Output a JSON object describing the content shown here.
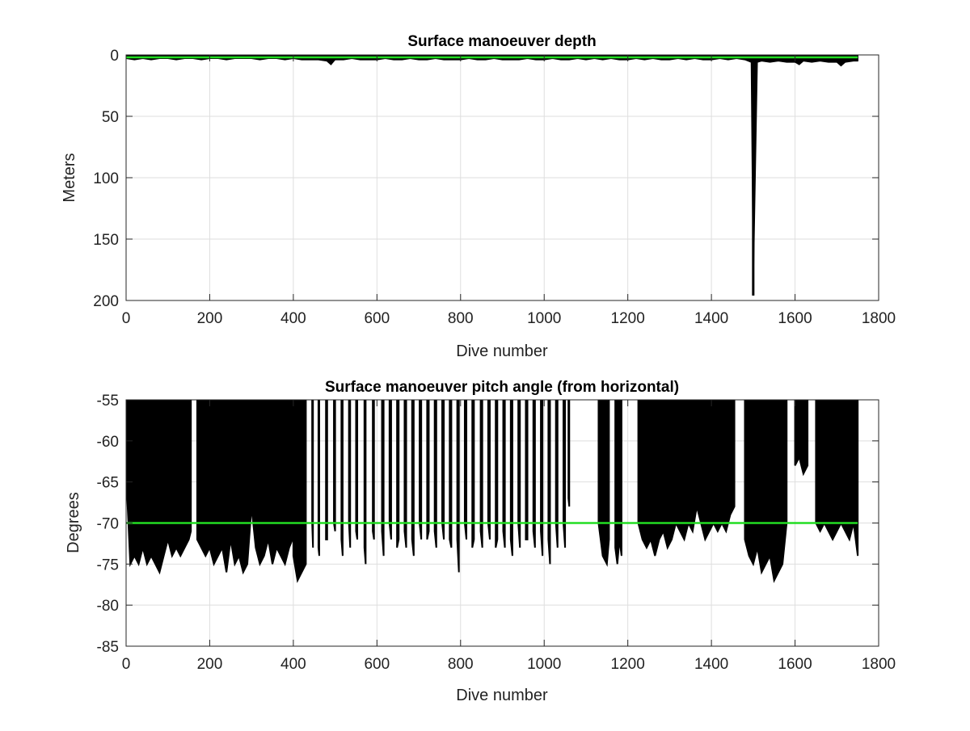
{
  "chart_data": [
    {
      "type": "line",
      "title": "Surface manoeuver depth",
      "xlabel": "Dive number",
      "ylabel": "Meters",
      "xlim": [
        0,
        1800
      ],
      "ylim": [
        0,
        200
      ],
      "y_reversed": true,
      "x_ticks": [
        "0",
        "200",
        "400",
        "600",
        "800",
        "1000",
        "1200",
        "1400",
        "1600",
        "1800"
      ],
      "y_ticks": [
        "0",
        "50",
        "100",
        "150",
        "200"
      ],
      "grid": true,
      "series": [
        {
          "color": "#000000",
          "style": "stem",
          "x": [
            1,
            20,
            40,
            60,
            80,
            100,
            120,
            140,
            160,
            180,
            200,
            220,
            240,
            260,
            280,
            300,
            320,
            340,
            360,
            380,
            400,
            420,
            440,
            460,
            480,
            490,
            500,
            520,
            540,
            560,
            580,
            600,
            620,
            640,
            660,
            680,
            700,
            720,
            740,
            760,
            780,
            800,
            820,
            840,
            860,
            880,
            900,
            920,
            940,
            960,
            980,
            1000,
            1020,
            1040,
            1060,
            1080,
            1100,
            1120,
            1140,
            1160,
            1180,
            1200,
            1220,
            1240,
            1260,
            1280,
            1300,
            1320,
            1340,
            1360,
            1380,
            1400,
            1420,
            1440,
            1460,
            1480,
            1495,
            1500,
            1510,
            1520,
            1540,
            1560,
            1580,
            1600,
            1610,
            1620,
            1640,
            1660,
            1680,
            1700,
            1710,
            1720,
            1740,
            1750
          ],
          "y": [
            3,
            4,
            3,
            4,
            3,
            3,
            4,
            3,
            3,
            4,
            3,
            3,
            4,
            3,
            3,
            3,
            4,
            3,
            3,
            4,
            3,
            4,
            4,
            4,
            5,
            8,
            4,
            4,
            3,
            4,
            4,
            4,
            3,
            4,
            4,
            3,
            4,
            4,
            3,
            4,
            4,
            4,
            3,
            4,
            4,
            3,
            4,
            4,
            4,
            3,
            4,
            4,
            3,
            4,
            4,
            3,
            4,
            3,
            4,
            3,
            4,
            4,
            3,
            4,
            3,
            4,
            4,
            3,
            4,
            3,
            4,
            4,
            3,
            4,
            3,
            4,
            6,
            196,
            6,
            5,
            6,
            5,
            6,
            6,
            8,
            5,
            6,
            5,
            6,
            6,
            9,
            6,
            5,
            5
          ]
        },
        {
          "color": "#22dd22",
          "style": "line",
          "x": [
            0,
            1750
          ],
          "y": [
            2,
            2
          ]
        }
      ]
    },
    {
      "type": "line",
      "title": "Surface manoeuver pitch angle (from horizontal)",
      "xlabel": "Dive number",
      "ylabel": "Degrees",
      "xlim": [
        0,
        1800
      ],
      "ylim": [
        -85,
        -55
      ],
      "x_ticks": [
        "0",
        "200",
        "400",
        "600",
        "800",
        "1000",
        "1200",
        "1400",
        "1600",
        "1800"
      ],
      "y_ticks": [
        "-55",
        "-60",
        "-65",
        "-70",
        "-75",
        "-80",
        "-85"
      ],
      "grid": true,
      "series": [
        {
          "color": "#000000",
          "style": "fill-from-top",
          "segments": [
            {
              "x": [
                1,
                10,
                20,
                30,
                40,
                50,
                60,
                70,
                80,
                90,
                100,
                110,
                120,
                130,
                140,
                150,
                155
              ],
              "y": [
                -65,
                -75,
                -74,
                -75,
                -73,
                -75,
                -74,
                -75,
                -76,
                -74,
                -72,
                -74,
                -73,
                -74,
                -73,
                -72,
                -71
              ]
            },
            {
              "x": [
                170,
                180,
                190,
                200,
                210,
                220,
                230,
                240,
                250,
                260,
                270,
                280,
                290,
                300,
                310,
                320,
                330,
                340,
                350,
                360,
                370,
                380,
                390,
                398
              ],
              "y": [
                -72,
                -73,
                -74,
                -73,
                -75,
                -74,
                -73,
                -76,
                -72,
                -75,
                -74,
                -76,
                -75,
                -68,
                -73,
                -75,
                -74,
                -72,
                -75,
                -73,
                -74,
                -75,
                -73,
                -72
              ]
            },
            {
              "x": [
                400,
                410,
                420,
                430
              ],
              "y": [
                -74,
                -77,
                -76,
                -75
              ]
            },
            {
              "x": [
                445,
                447
              ],
              "y": [
                -70,
                -73
              ]
            },
            {
              "x": [
                460,
                462
              ],
              "y": [
                -73,
                -74
              ]
            },
            {
              "x": [
                478,
                481
              ],
              "y": [
                -72,
                -72
              ]
            },
            {
              "x": [
                497,
                500
              ],
              "y": [
                -70,
                -71
              ]
            },
            {
              "x": [
                515,
                518
              ],
              "y": [
                -72,
                -74
              ]
            },
            {
              "x": [
                533,
                536
              ],
              "y": [
                -70,
                -73
              ]
            },
            {
              "x": [
                550,
                553
              ],
              "y": [
                -71,
                -72
              ]
            },
            {
              "x": [
                570,
                573
              ],
              "y": [
                -73,
                -75
              ]
            },
            {
              "x": [
                590,
                593
              ],
              "y": [
                -71,
                -72
              ]
            },
            {
              "x": [
                612,
                616
              ],
              "y": [
                -71,
                -74
              ]
            },
            {
              "x": [
                630,
                634
              ],
              "y": [
                -70,
                -72
              ]
            },
            {
              "x": [
                648,
                652
              ],
              "y": [
                -73,
                -72
              ]
            },
            {
              "x": [
                666,
                670
              ],
              "y": [
                -71,
                -73
              ]
            },
            {
              "x": [
                684,
                688
              ],
              "y": [
                -72,
                -74
              ]
            },
            {
              "x": [
                702,
                706
              ],
              "y": [
                -70,
                -72
              ]
            },
            {
              "x": [
                720,
                724
              ],
              "y": [
                -72,
                -71
              ]
            },
            {
              "x": [
                738,
                742
              ],
              "y": [
                -71,
                -73
              ]
            },
            {
              "x": [
                756,
                760
              ],
              "y": [
                -70,
                -72
              ]
            },
            {
              "x": [
                774,
                778
              ],
              "y": [
                -72,
                -73
              ]
            },
            {
              "x": [
                792,
                796
              ],
              "y": [
                -72,
                -76
              ]
            },
            {
              "x": [
                810,
                814
              ],
              "y": [
                -70,
                -72
              ]
            },
            {
              "x": [
                828,
                832
              ],
              "y": [
                -73,
                -72
              ]
            },
            {
              "x": [
                848,
                852
              ],
              "y": [
                -71,
                -73
              ]
            },
            {
              "x": [
                866,
                870
              ],
              "y": [
                -70,
                -72
              ]
            },
            {
              "x": [
                884,
                888
              ],
              "y": [
                -73,
                -72
              ]
            },
            {
              "x": [
                902,
                906
              ],
              "y": [
                -71,
                -73
              ]
            },
            {
              "x": [
                920,
                924
              ],
              "y": [
                -72,
                -74
              ]
            },
            {
              "x": [
                938,
                942
              ],
              "y": [
                -70,
                -73
              ]
            },
            {
              "x": [
                956,
                960
              ],
              "y": [
                -72,
                -72
              ]
            },
            {
              "x": [
                974,
                978
              ],
              "y": [
                -71,
                -73
              ]
            },
            {
              "x": [
                992,
                996
              ],
              "y": [
                -71,
                -74
              ]
            },
            {
              "x": [
                1010,
                1014
              ],
              "y": [
                -72,
                -75
              ]
            },
            {
              "x": [
                1028,
                1032
              ],
              "y": [
                -70,
                -73
              ]
            },
            {
              "x": [
                1046,
                1050
              ],
              "y": [
                -70,
                -73
              ]
            },
            {
              "x": [
                1058,
                1060
              ],
              "y": [
                -67,
                -68
              ]
            },
            {
              "x": [
                1130,
                1140,
                1150,
                1155
              ],
              "y": [
                -70,
                -74,
                -75,
                -72
              ]
            },
            {
              "x": [
                1170,
                1175,
                1180,
                1185
              ],
              "y": [
                -73,
                -75,
                -72,
                -74
              ]
            },
            {
              "x": [
                1225,
                1235,
                1245,
                1255,
                1265,
                1275,
                1285,
                1295,
                1305,
                1315,
                1325,
                1335,
                1345,
                1355,
                1365,
                1375,
                1385,
                1395,
                1405,
                1415,
                1425,
                1435,
                1445,
                1455
              ],
              "y": [
                -70,
                -72,
                -73,
                -72,
                -74,
                -72,
                -71,
                -73,
                -72,
                -70,
                -71,
                -72,
                -70,
                -71,
                -68,
                -70,
                -72,
                -71,
                -70,
                -71,
                -70,
                -71,
                -69,
                -68
              ]
            },
            {
              "x": [
                1480,
                1490,
                1500,
                1510,
                1520,
                1530,
                1540,
                1550,
                1560,
                1570,
                1580
              ],
              "y": [
                -72,
                -74,
                -75,
                -73,
                -76,
                -75,
                -74,
                -77,
                -76,
                -75,
                -70
              ]
            },
            {
              "x": [
                1600,
                1610,
                1620,
                1630
              ],
              "y": [
                -63,
                -62,
                -64,
                -63
              ]
            },
            {
              "x": [
                1650,
                1660,
                1670,
                1680,
                1690,
                1700,
                1710,
                1720,
                1730,
                1740,
                1750
              ],
              "y": [
                -70,
                -71,
                -70,
                -71,
                -72,
                -71,
                -70,
                -71,
                -72,
                -70,
                -74
              ]
            }
          ]
        },
        {
          "color": "#22dd22",
          "style": "line",
          "x": [
            0,
            1750
          ],
          "y": [
            -70,
            -70
          ]
        }
      ]
    }
  ]
}
